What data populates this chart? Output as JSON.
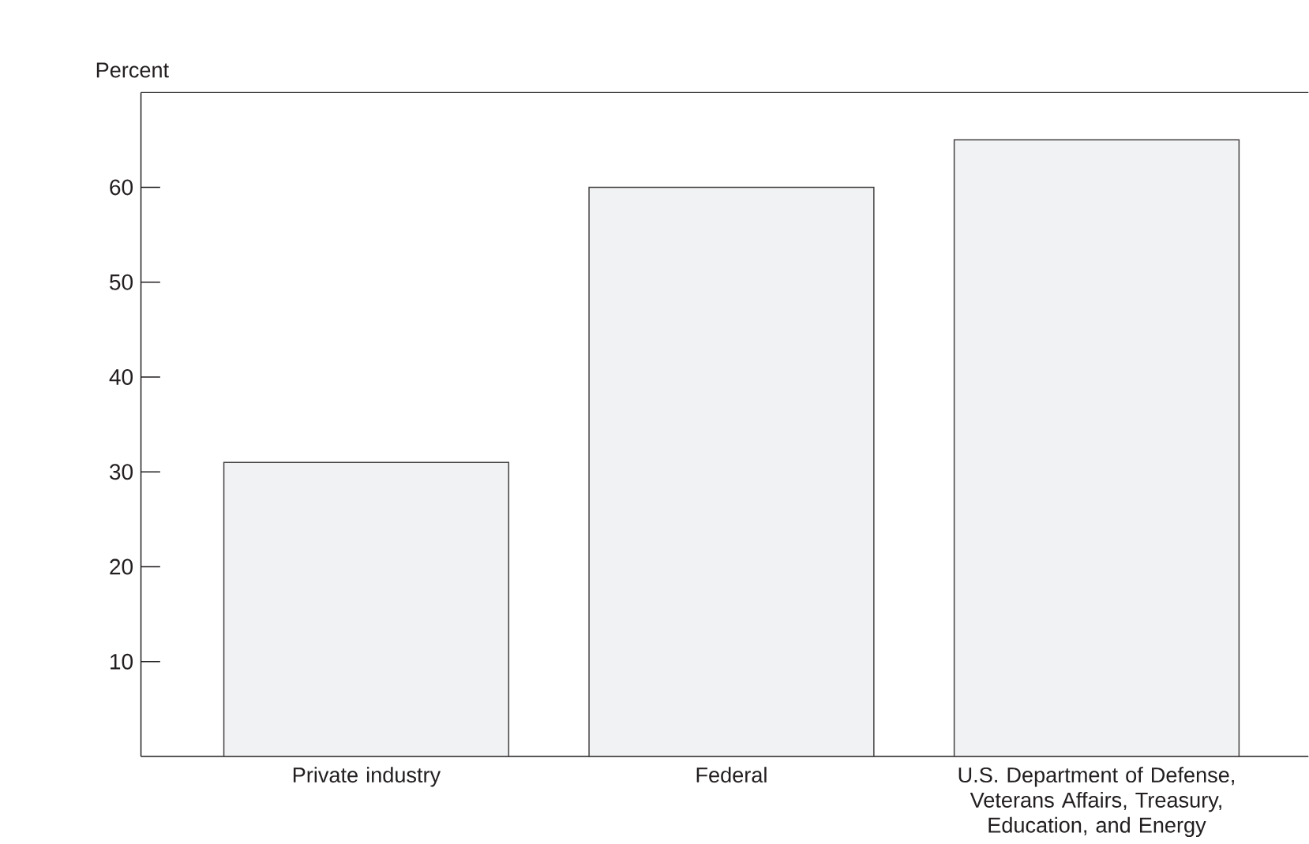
{
  "chart_data": {
    "type": "bar",
    "ylabel": "Percent",
    "categories": [
      "Private industry",
      "Federal",
      "U.S. Department of Defense, Veterans Affairs, Treasury, Education, and Energy"
    ],
    "values": [
      31,
      60,
      65
    ],
    "color": "#f1f2f4",
    "ylim": [
      0,
      70
    ],
    "yticks": [
      10,
      20,
      30,
      40,
      50,
      60
    ]
  }
}
